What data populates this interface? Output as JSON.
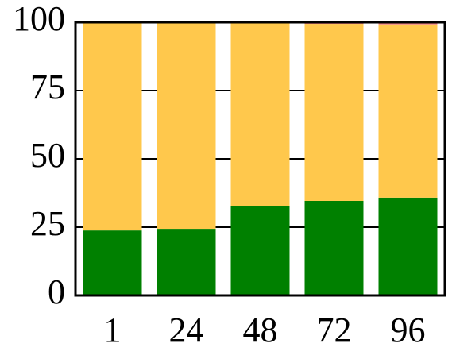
{
  "chart_data": {
    "type": "stacked_bar",
    "categories": [
      "1",
      "24",
      "48",
      "72",
      "96"
    ],
    "series": [
      {
        "color": "#008000",
        "values": [
          23.8,
          24.4,
          32.8,
          34.6,
          35.8
        ]
      },
      {
        "color": "#ffc84c",
        "values": [
          76.2,
          75.6,
          67.2,
          64.8,
          63.4
        ]
      },
      {
        "color": "#f08080",
        "values": [
          0,
          0,
          0,
          0.6,
          0.8
        ]
      }
    ],
    "ylim": [
      0,
      100
    ],
    "yticks": [
      0,
      25,
      50,
      75,
      100
    ],
    "grid": true
  }
}
